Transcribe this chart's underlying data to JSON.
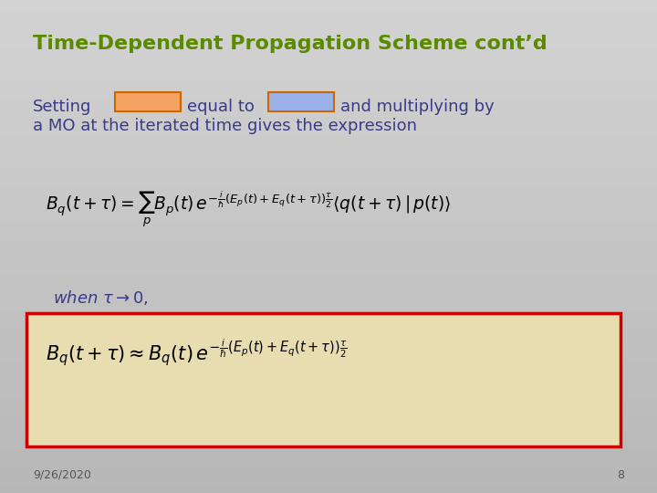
{
  "title": "Time-Dependent Propagation Scheme cont’d",
  "title_color": "#5a8a00",
  "title_fontsize": 16,
  "bg_color_top": "#d0d0d0",
  "bg_color_bottom": "#b0b0b0",
  "text_color": "#3a3a8a",
  "text_fontsize": 13,
  "orange_box_color": "#f4a460",
  "orange_box_edge": "#cc6600",
  "blue_box_color": "#9ab0e8",
  "blue_box_edge": "#cc6600",
  "setting_text": "Setting",
  "equal_text": "equal to",
  "and_text": "and multiplying by",
  "line2_text": "a MO at the iterated time gives the expression",
  "when_text": "when",
  "box2_bg": "#e8ddb0",
  "box2_edge": "#cc0000",
  "date_text": "9/26/2020",
  "page_num": "8"
}
